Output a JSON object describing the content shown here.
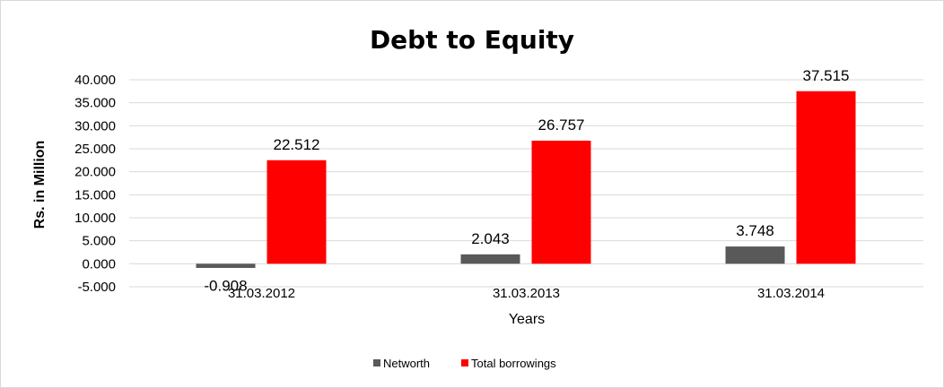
{
  "chart_data": {
    "type": "bar",
    "title": "Debt to Equity",
    "xlabel": "Years",
    "ylabel": "Rs. in Million",
    "categories": [
      "31.03.2012",
      "31.03.2013",
      "31.03.2014"
    ],
    "series": [
      {
        "name": "Networth",
        "color": "#595959",
        "values": [
          -0.908,
          2.043,
          3.748
        ],
        "labels": [
          "-0.908",
          "2.043",
          "3.748"
        ]
      },
      {
        "name": "Total borrowings",
        "color": "#ff0000",
        "values": [
          22.512,
          26.757,
          37.515
        ],
        "labels": [
          "22.512",
          "26.757",
          "37.515"
        ]
      }
    ],
    "ylim": [
      -5,
      40
    ],
    "yticks": [
      {
        "value": 40,
        "label": "40.000"
      },
      {
        "value": 35,
        "label": "35.000"
      },
      {
        "value": 30,
        "label": "30.000"
      },
      {
        "value": 25,
        "label": "25.000"
      },
      {
        "value": 20,
        "label": "20.000"
      },
      {
        "value": 15,
        "label": "15.000"
      },
      {
        "value": 10,
        "label": "10.000"
      },
      {
        "value": 5,
        "label": "5.000"
      },
      {
        "value": 0,
        "label": "0.000"
      },
      {
        "value": -5,
        "label": "-5.000"
      }
    ],
    "grid": true,
    "legend": "bottom"
  }
}
